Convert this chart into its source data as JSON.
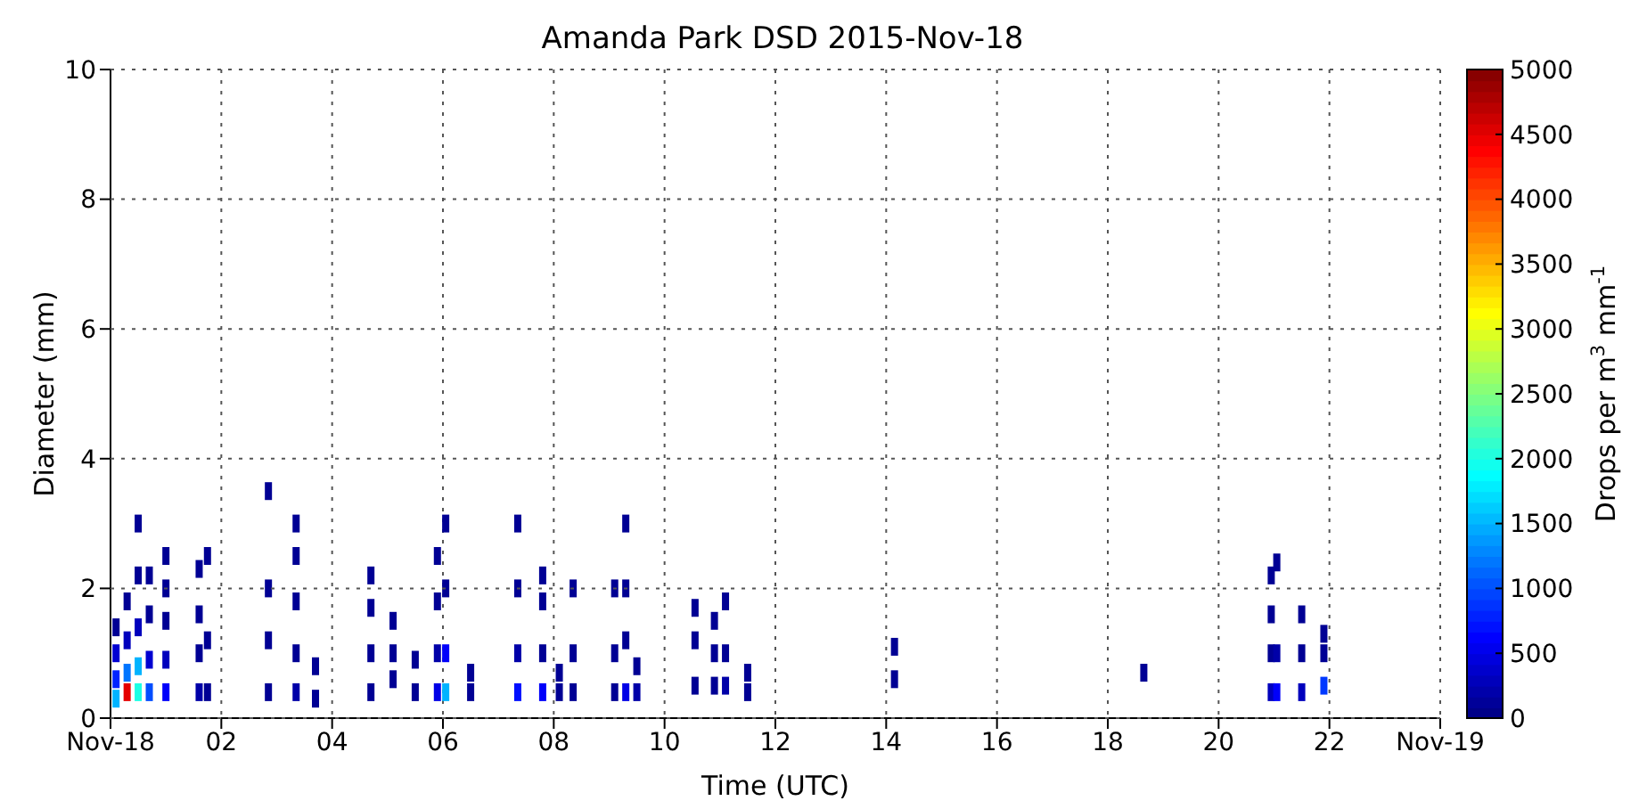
{
  "chart_data": {
    "type": "scatter",
    "title": "Amanda Park DSD 2015-Nov-18",
    "xlabel": "Time (UTC)",
    "ylabel": "Diameter (mm)",
    "clabel": "Drops per m$^{3}$ mm$^{-1}$",
    "x": [
      0.1,
      0.1,
      0.1,
      0.1,
      0.3,
      0.3,
      0.3,
      0.3,
      0.5,
      0.5,
      0.5,
      0.5,
      0.5,
      0.7,
      0.7,
      0.7,
      0.7,
      1.0,
      1.0,
      1.0,
      1.0,
      1.0,
      1.6,
      1.6,
      1.6,
      1.6,
      1.75,
      1.75,
      1.75,
      2.85,
      2.85,
      2.85,
      2.85,
      3.35,
      3.35,
      3.35,
      3.35,
      3.35,
      3.7,
      3.7,
      4.7,
      4.7,
      4.7,
      4.7,
      5.1,
      5.1,
      5.1,
      5.5,
      5.5,
      5.9,
      5.9,
      5.9,
      5.9,
      6.05,
      6.05,
      6.05,
      6.05,
      6.5,
      6.5,
      7.35,
      7.35,
      7.35,
      7.35,
      7.8,
      7.8,
      7.8,
      7.8,
      8.1,
      8.1,
      8.35,
      8.35,
      8.35,
      9.1,
      9.1,
      9.1,
      9.3,
      9.3,
      9.3,
      9.3,
      9.5,
      9.5,
      10.55,
      10.55,
      10.55,
      10.9,
      10.9,
      10.9,
      11.1,
      11.1,
      11.1,
      11.5,
      11.5,
      14.15,
      14.15,
      18.65,
      20.95,
      20.95,
      20.95,
      20.95,
      21.05,
      21.05,
      21.05,
      21.5,
      21.5,
      21.5,
      21.9,
      21.9,
      21.9
    ],
    "values": [
      0.3,
      0.6,
      1.0,
      1.4,
      0.4,
      0.7,
      1.2,
      1.8,
      0.4,
      0.8,
      1.4,
      2.2,
      3.0,
      0.4,
      0.9,
      1.6,
      2.2,
      0.4,
      0.9,
      1.5,
      2.0,
      2.5,
      0.4,
      1.0,
      1.6,
      2.3,
      0.4,
      1.2,
      2.5,
      0.4,
      1.2,
      2.0,
      3.5,
      0.4,
      1.0,
      1.8,
      2.5,
      3.0,
      0.3,
      0.8,
      0.4,
      1.0,
      1.7,
      2.2,
      0.6,
      1.0,
      1.5,
      0.4,
      0.9,
      0.4,
      1.0,
      1.8,
      2.5,
      0.4,
      1.0,
      2.0,
      3.0,
      0.4,
      0.7,
      0.4,
      1.0,
      2.0,
      3.0,
      0.4,
      1.0,
      1.8,
      2.2,
      0.4,
      0.7,
      0.4,
      1.0,
      2.0,
      0.4,
      1.0,
      2.0,
      0.4,
      1.2,
      2.0,
      3.0,
      0.4,
      0.8,
      0.5,
      1.2,
      1.7,
      0.5,
      1.0,
      1.5,
      0.5,
      1.0,
      1.8,
      0.4,
      0.7,
      0.6,
      1.1,
      0.7,
      0.4,
      1.0,
      1.6,
      2.2,
      0.4,
      1.0,
      2.4,
      0.4,
      1.0,
      1.6,
      0.5,
      1.0,
      1.3
    ],
    "cvalues": [
      1500,
      800,
      400,
      100,
      4500,
      1200,
      300,
      100,
      2000,
      1500,
      300,
      100,
      100,
      1000,
      400,
      100,
      100,
      600,
      300,
      100,
      100,
      100,
      200,
      100,
      100,
      100,
      100,
      100,
      100,
      100,
      100,
      100,
      100,
      200,
      100,
      100,
      100,
      100,
      100,
      100,
      100,
      100,
      100,
      100,
      100,
      100,
      100,
      100,
      100,
      500,
      200,
      100,
      100,
      1500,
      600,
      100,
      100,
      100,
      100,
      700,
      200,
      100,
      100,
      600,
      100,
      100,
      100,
      100,
      100,
      100,
      100,
      100,
      100,
      100,
      100,
      500,
      100,
      100,
      100,
      200,
      100,
      100,
      100,
      100,
      100,
      100,
      100,
      200,
      100,
      100,
      100,
      100,
      100,
      100,
      100,
      300,
      100,
      100,
      100,
      600,
      200,
      100,
      300,
      100,
      100,
      900,
      100,
      100
    ],
    "marker": "square",
    "xlim": [
      0,
      24
    ],
    "ylim": [
      0,
      10
    ],
    "xticks": [
      {
        "value": 0,
        "label": "Nov-18"
      },
      {
        "value": 2,
        "label": "02"
      },
      {
        "value": 4,
        "label": "04"
      },
      {
        "value": 6,
        "label": "06"
      },
      {
        "value": 8,
        "label": "08"
      },
      {
        "value": 10,
        "label": "10"
      },
      {
        "value": 12,
        "label": "12"
      },
      {
        "value": 14,
        "label": "14"
      },
      {
        "value": 16,
        "label": "16"
      },
      {
        "value": 18,
        "label": "18"
      },
      {
        "value": 20,
        "label": "20"
      },
      {
        "value": 22,
        "label": "22"
      },
      {
        "value": 24,
        "label": "Nov-19"
      }
    ],
    "yticks": [
      0,
      2,
      4,
      6,
      8,
      10
    ],
    "clim": [
      0,
      5000
    ],
    "cticks": [
      0,
      500,
      1000,
      1500,
      2000,
      2500,
      3000,
      3500,
      4000,
      4500,
      5000
    ],
    "grid": true,
    "legend": false
  }
}
